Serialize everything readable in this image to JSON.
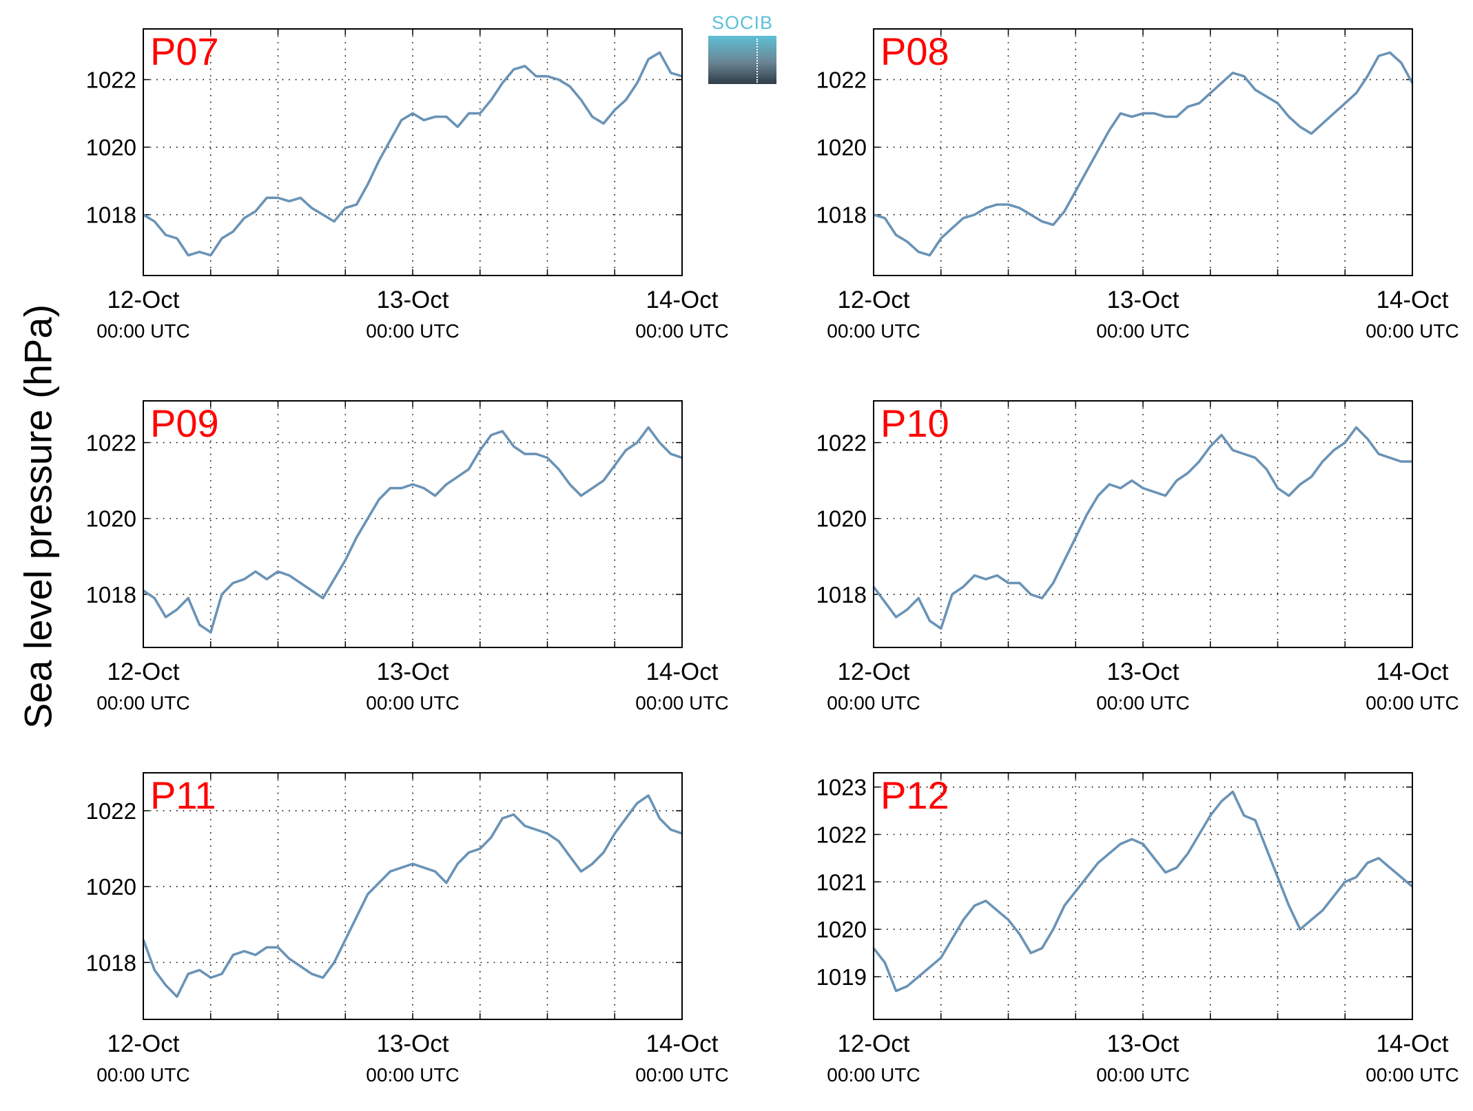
{
  "figure": {
    "ylabel": "Sea level pressure (hPa)",
    "logo_text": "SOCIB",
    "colors": {
      "line": "#6a93b6",
      "panel_label": "#ff0000",
      "axis": "#000000",
      "grid": "#000000",
      "logo_text": "#5cc0d8",
      "logo_top": "#5fbfd4",
      "logo_bottom": "#2f3d48"
    }
  },
  "chart_data": [
    {
      "type": "line",
      "panel_label": "P07",
      "x_ticks": [
        {
          "date": "12-Oct",
          "time": "00:00 UTC"
        },
        {
          "date": "13-Oct",
          "time": "00:00 UTC"
        },
        {
          "date": "14-Oct",
          "time": "00:00 UTC"
        }
      ],
      "xlim_hours": [
        0,
        48
      ],
      "ylim": [
        1016.2,
        1023.5
      ],
      "yticks": [
        1018,
        1020,
        1022
      ],
      "grid": true,
      "series": [
        {
          "x_hours": [
            0,
            1,
            2,
            3,
            4,
            5,
            6,
            7,
            8,
            9,
            10,
            11,
            12,
            13,
            14,
            15,
            16,
            17,
            18,
            19,
            20,
            21,
            22,
            23,
            24,
            25,
            26,
            27,
            28,
            29,
            30,
            31,
            32,
            33,
            34,
            35,
            36,
            37,
            38,
            39,
            40,
            41,
            42,
            43,
            44,
            45,
            46,
            47,
            48
          ],
          "values": [
            1018.0,
            1017.8,
            1017.4,
            1017.3,
            1016.8,
            1016.9,
            1016.8,
            1017.3,
            1017.5,
            1017.9,
            1018.1,
            1018.5,
            1018.5,
            1018.4,
            1018.5,
            1018.2,
            1018.0,
            1017.8,
            1018.2,
            1018.3,
            1018.9,
            1019.6,
            1020.2,
            1020.8,
            1021.0,
            1020.8,
            1020.9,
            1020.9,
            1020.6,
            1021.0,
            1021.0,
            1021.4,
            1021.9,
            1022.3,
            1022.4,
            1022.1,
            1022.1,
            1022.0,
            1021.8,
            1021.4,
            1020.9,
            1020.7,
            1021.1,
            1021.4,
            1021.9,
            1022.6,
            1022.8,
            1022.2,
            1022.1
          ]
        }
      ]
    },
    {
      "type": "line",
      "panel_label": "P08",
      "x_ticks": [
        {
          "date": "12-Oct",
          "time": "00:00 UTC"
        },
        {
          "date": "13-Oct",
          "time": "00:00 UTC"
        },
        {
          "date": "14-Oct",
          "time": "00:00 UTC"
        }
      ],
      "xlim_hours": [
        0,
        48
      ],
      "ylim": [
        1016.2,
        1023.5
      ],
      "yticks": [
        1018,
        1020,
        1022
      ],
      "grid": true,
      "series": [
        {
          "x_hours": [
            0,
            1,
            2,
            3,
            4,
            5,
            6,
            7,
            8,
            9,
            10,
            11,
            12,
            13,
            14,
            15,
            16,
            17,
            18,
            19,
            20,
            21,
            22,
            23,
            24,
            25,
            26,
            27,
            28,
            29,
            30,
            31,
            32,
            33,
            34,
            35,
            36,
            37,
            38,
            39,
            40,
            41,
            42,
            43,
            44,
            45,
            46,
            47,
            48
          ],
          "values": [
            1018.0,
            1017.9,
            1017.4,
            1017.2,
            1016.9,
            1016.8,
            1017.3,
            1017.6,
            1017.9,
            1018.0,
            1018.2,
            1018.3,
            1018.3,
            1018.2,
            1018.0,
            1017.8,
            1017.7,
            1018.1,
            1018.7,
            1019.3,
            1019.9,
            1020.5,
            1021.0,
            1020.9,
            1021.0,
            1021.0,
            1020.9,
            1020.9,
            1021.2,
            1021.3,
            1021.6,
            1021.9,
            1022.2,
            1022.1,
            1021.7,
            1021.5,
            1021.3,
            1020.9,
            1020.6,
            1020.4,
            1020.7,
            1021.0,
            1021.3,
            1021.6,
            1022.1,
            1022.7,
            1022.8,
            1022.5,
            1021.9
          ]
        }
      ]
    },
    {
      "type": "line",
      "panel_label": "P09",
      "x_ticks": [
        {
          "date": "12-Oct",
          "time": "00:00 UTC"
        },
        {
          "date": "13-Oct",
          "time": "00:00 UTC"
        },
        {
          "date": "14-Oct",
          "time": "00:00 UTC"
        }
      ],
      "xlim_hours": [
        0,
        48
      ],
      "ylim": [
        1016.6,
        1023.1
      ],
      "yticks": [
        1018,
        1020,
        1022
      ],
      "grid": true,
      "series": [
        {
          "x_hours": [
            0,
            1,
            2,
            3,
            4,
            5,
            6,
            7,
            8,
            9,
            10,
            11,
            12,
            13,
            14,
            15,
            16,
            17,
            18,
            19,
            20,
            21,
            22,
            23,
            24,
            25,
            26,
            27,
            28,
            29,
            30,
            31,
            32,
            33,
            34,
            35,
            36,
            37,
            38,
            39,
            40,
            41,
            42,
            43,
            44,
            45,
            46,
            47,
            48
          ],
          "values": [
            1018.1,
            1017.9,
            1017.4,
            1017.6,
            1017.9,
            1017.2,
            1017.0,
            1018.0,
            1018.3,
            1018.4,
            1018.6,
            1018.4,
            1018.6,
            1018.5,
            1018.3,
            1018.1,
            1017.9,
            1018.4,
            1018.9,
            1019.5,
            1020.0,
            1020.5,
            1020.8,
            1020.8,
            1020.9,
            1020.8,
            1020.6,
            1020.9,
            1021.1,
            1021.3,
            1021.8,
            1022.2,
            1022.3,
            1021.9,
            1021.7,
            1021.7,
            1021.6,
            1021.3,
            1020.9,
            1020.6,
            1020.8,
            1021.0,
            1021.4,
            1021.8,
            1022.0,
            1022.4,
            1022.0,
            1021.7,
            1021.6
          ]
        }
      ]
    },
    {
      "type": "line",
      "panel_label": "P10",
      "x_ticks": [
        {
          "date": "12-Oct",
          "time": "00:00 UTC"
        },
        {
          "date": "13-Oct",
          "time": "00:00 UTC"
        },
        {
          "date": "14-Oct",
          "time": "00:00 UTC"
        }
      ],
      "xlim_hours": [
        0,
        48
      ],
      "ylim": [
        1016.6,
        1023.1
      ],
      "yticks": [
        1018,
        1020,
        1022
      ],
      "grid": true,
      "series": [
        {
          "x_hours": [
            0,
            1,
            2,
            3,
            4,
            5,
            6,
            7,
            8,
            9,
            10,
            11,
            12,
            13,
            14,
            15,
            16,
            17,
            18,
            19,
            20,
            21,
            22,
            23,
            24,
            25,
            26,
            27,
            28,
            29,
            30,
            31,
            32,
            33,
            34,
            35,
            36,
            37,
            38,
            39,
            40,
            41,
            42,
            43,
            44,
            45,
            46,
            47,
            48
          ],
          "values": [
            1018.2,
            1017.8,
            1017.4,
            1017.6,
            1017.9,
            1017.3,
            1017.1,
            1018.0,
            1018.2,
            1018.5,
            1018.4,
            1018.5,
            1018.3,
            1018.3,
            1018.0,
            1017.9,
            1018.3,
            1018.9,
            1019.5,
            1020.1,
            1020.6,
            1020.9,
            1020.8,
            1021.0,
            1020.8,
            1020.7,
            1020.6,
            1021.0,
            1021.2,
            1021.5,
            1021.9,
            1022.2,
            1021.8,
            1021.7,
            1021.6,
            1021.3,
            1020.8,
            1020.6,
            1020.9,
            1021.1,
            1021.5,
            1021.8,
            1022.0,
            1022.4,
            1022.1,
            1021.7,
            1021.6,
            1021.5,
            1021.5
          ]
        }
      ]
    },
    {
      "type": "line",
      "panel_label": "P11",
      "x_ticks": [
        {
          "date": "12-Oct",
          "time": "00:00 UTC"
        },
        {
          "date": "13-Oct",
          "time": "00:00 UTC"
        },
        {
          "date": "14-Oct",
          "time": "00:00 UTC"
        }
      ],
      "xlim_hours": [
        0,
        48
      ],
      "ylim": [
        1016.5,
        1023.0
      ],
      "yticks": [
        1018,
        1020,
        1022
      ],
      "grid": true,
      "series": [
        {
          "x_hours": [
            0,
            1,
            2,
            3,
            4,
            5,
            6,
            7,
            8,
            9,
            10,
            11,
            12,
            13,
            14,
            15,
            16,
            17,
            18,
            19,
            20,
            21,
            22,
            23,
            24,
            25,
            26,
            27,
            28,
            29,
            30,
            31,
            32,
            33,
            34,
            35,
            36,
            37,
            38,
            39,
            40,
            41,
            42,
            43,
            44,
            45,
            46,
            47,
            48
          ],
          "values": [
            1018.6,
            1017.8,
            1017.4,
            1017.1,
            1017.7,
            1017.8,
            1017.6,
            1017.7,
            1018.2,
            1018.3,
            1018.2,
            1018.4,
            1018.4,
            1018.1,
            1017.9,
            1017.7,
            1017.6,
            1018.0,
            1018.6,
            1019.2,
            1019.8,
            1020.1,
            1020.4,
            1020.5,
            1020.6,
            1020.5,
            1020.4,
            1020.1,
            1020.6,
            1020.9,
            1021.0,
            1021.3,
            1021.8,
            1021.9,
            1021.6,
            1021.5,
            1021.4,
            1021.2,
            1020.8,
            1020.4,
            1020.6,
            1020.9,
            1021.4,
            1021.8,
            1022.2,
            1022.4,
            1021.8,
            1021.5,
            1021.4
          ]
        }
      ]
    },
    {
      "type": "line",
      "panel_label": "P12",
      "x_ticks": [
        {
          "date": "12-Oct",
          "time": "00:00 UTC"
        },
        {
          "date": "13-Oct",
          "time": "00:00 UTC"
        },
        {
          "date": "14-Oct",
          "time": "00:00 UTC"
        }
      ],
      "xlim_hours": [
        0,
        48
      ],
      "ylim": [
        1018.1,
        1023.3
      ],
      "yticks": [
        1019,
        1020,
        1021,
        1022,
        1023
      ],
      "grid": true,
      "series": [
        {
          "x_hours": [
            0,
            1,
            2,
            3,
            4,
            5,
            6,
            7,
            8,
            9,
            10,
            11,
            12,
            13,
            14,
            15,
            16,
            17,
            18,
            19,
            20,
            21,
            22,
            23,
            24,
            25,
            26,
            27,
            28,
            29,
            30,
            31,
            32,
            33,
            34,
            35,
            36,
            37,
            38,
            39,
            40,
            41,
            42,
            43,
            44,
            45,
            46,
            47,
            48
          ],
          "values": [
            1019.6,
            1019.3,
            1018.7,
            1018.8,
            1019.0,
            1019.2,
            1019.4,
            1019.8,
            1020.2,
            1020.5,
            1020.6,
            1020.4,
            1020.2,
            1019.9,
            1019.5,
            1019.6,
            1020.0,
            1020.5,
            1020.8,
            1021.1,
            1021.4,
            1021.6,
            1021.8,
            1021.9,
            1021.8,
            1021.5,
            1021.2,
            1021.3,
            1021.6,
            1022.0,
            1022.4,
            1022.7,
            1022.9,
            1022.4,
            1022.3,
            1021.7,
            1021.1,
            1020.5,
            1020.0,
            1020.2,
            1020.4,
            1020.7,
            1021.0,
            1021.1,
            1021.4,
            1021.5,
            1021.3,
            1021.1,
            1020.9
          ]
        }
      ]
    }
  ]
}
